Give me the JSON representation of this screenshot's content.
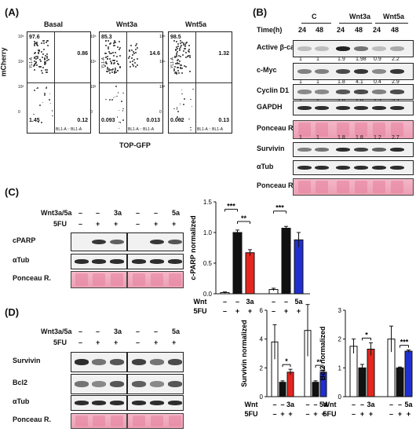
{
  "panels": {
    "A": "(A)",
    "B": "(B)",
    "C": "(C)",
    "D": "(D)"
  },
  "flow": {
    "y_axis": "mCherry",
    "x_axis": "TOP-GFP",
    "plots": [
      {
        "title": "Basal",
        "ul": "97.6",
        "ur": "0.86",
        "ll": "1.45",
        "lr": "0.12"
      },
      {
        "title": "Wnt3a",
        "ul": "85.3",
        "ur": "14.6",
        "ll": "0.093",
        "lr": "0.013"
      },
      {
        "title": "Wnt5a",
        "ul": "98.5",
        "ur": "1.32",
        "ll": "0.062",
        "lr": "0.13"
      }
    ],
    "y_ticks": [
      "10⁵",
      "10⁴",
      "10³",
      "0"
    ],
    "ax_x": "BL1-A :: BL1-A",
    "ax_y": "YL1-A"
  },
  "westernB": {
    "groups": [
      "C",
      "Wnt3a",
      "Wnt5a"
    ],
    "time_label": "Time(h)",
    "times": [
      "24",
      "48",
      "24",
      "48",
      "24",
      "48"
    ],
    "rows": [
      {
        "label": "Active β-catenin",
        "quant": [
          "1",
          "1",
          "1.9",
          "1.98",
          "0.9",
          "2.2"
        ]
      },
      {
        "label": "c-Myc",
        "quant": [
          "1",
          "1",
          "1.8",
          "4.1",
          "0.4",
          "2.9"
        ]
      },
      {
        "label": "Cyclin D1",
        "quant": []
      },
      {
        "label": "GAPDH",
        "quant": []
      },
      {
        "label": "Ponceau R.",
        "quant": []
      },
      {
        "label": "Survivin",
        "quant": [
          "1",
          "1",
          "1.8",
          "1.8",
          "1.2",
          "2.7"
        ]
      },
      {
        "label": "αTub",
        "quant": []
      },
      {
        "label": "Ponceau R.",
        "quant": []
      }
    ],
    "quant_cyclin": [
      "1",
      "1",
      "1.8",
      "1.8",
      "1.2",
      "2.7"
    ]
  },
  "westernC": {
    "treat1": "Wnt3a/5a",
    "treat2": "5FU",
    "left_t1": [
      "–",
      "–",
      "3a"
    ],
    "right_t1": [
      "–",
      "–",
      "5a"
    ],
    "t2": [
      "–",
      "+",
      "+"
    ],
    "rows": [
      "cPARP",
      "αTub",
      "Ponceau R."
    ]
  },
  "westernD": {
    "treat1": "Wnt3a/5a",
    "treat2": "5FU",
    "left_t1": [
      "–",
      "–",
      "3a"
    ],
    "right_t1": [
      "–",
      "–",
      "5a"
    ],
    "t2": [
      "–",
      "+",
      "+"
    ],
    "rows": [
      "Survivin",
      "Bcl2",
      "αTub",
      "Ponceau R."
    ]
  },
  "charts": {
    "wnt_label": "Wnt",
    "fu_label": "5FU",
    "wnt_vals": [
      "–",
      "–",
      "3a",
      "–",
      "–",
      "5a"
    ],
    "fu_vals": [
      "–",
      "+",
      "+",
      "–",
      "+",
      "+"
    ],
    "colors": {
      "white": "#ffffff",
      "black": "#111111",
      "red": "#e5261f",
      "blue": "#1f2fd0"
    }
  },
  "chart_data": [
    {
      "type": "bar",
      "ylabel": "c-PARP normalized",
      "ylim": [
        0,
        1.5
      ],
      "yticks": [
        "0.0",
        "0.5",
        "1.0",
        "1.5"
      ],
      "values": [
        0.02,
        1.0,
        0.67,
        0.07,
        1.07,
        0.88
      ],
      "errors": [
        0.01,
        0.04,
        0.05,
        0.02,
        0.03,
        0.12
      ],
      "sig": [
        {
          "from": 0,
          "to": 1,
          "label": "***"
        },
        {
          "from": 1,
          "to": 2,
          "label": "**"
        },
        {
          "from": 3,
          "to": 4,
          "label": "***"
        }
      ]
    },
    {
      "type": "bar",
      "ylabel": "Survivin normalized",
      "ylim": [
        0,
        6
      ],
      "yticks": [
        "0",
        "2",
        "4",
        "6"
      ],
      "values": [
        3.8,
        1.0,
        1.7,
        4.6,
        1.0,
        1.7
      ],
      "errors": [
        1.2,
        0.1,
        0.2,
        1.8,
        0.1,
        0.15
      ],
      "sig": [
        {
          "from": 1,
          "to": 2,
          "label": "*"
        },
        {
          "from": 4,
          "to": 5,
          "label": "**"
        }
      ]
    },
    {
      "type": "bar",
      "ylabel": "Bcl2 normalized",
      "ylim": [
        0,
        3
      ],
      "yticks": [
        "0",
        "1",
        "2",
        "3"
      ],
      "values": [
        1.75,
        1.0,
        1.65,
        2.0,
        1.0,
        1.58
      ],
      "errors": [
        0.25,
        0.12,
        0.22,
        0.45,
        0.03,
        0.04
      ],
      "sig": [
        {
          "from": 1,
          "to": 2,
          "label": "*"
        },
        {
          "from": 4,
          "to": 5,
          "label": "***"
        }
      ]
    }
  ]
}
